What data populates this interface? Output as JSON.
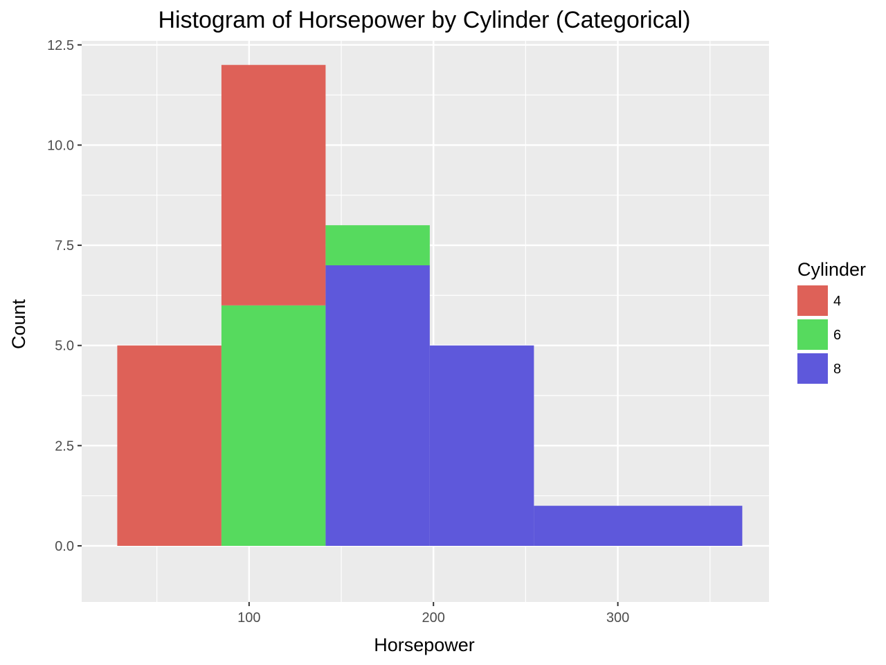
{
  "chart_data": {
    "type": "bar",
    "subtype": "stacked-histogram",
    "title": "Histogram of Horsepower by Cylinder (Categorical)",
    "xlabel": "Horsepower",
    "ylabel": "Count",
    "xlim": [
      9.2,
      382
    ],
    "ylim": [
      -1.4,
      12.6
    ],
    "x_ticks": [
      100,
      200,
      300
    ],
    "x_tick_labels": [
      "100",
      "200",
      "300"
    ],
    "y_ticks": [
      0,
      2.5,
      5,
      7.5,
      10,
      12.5
    ],
    "y_tick_labels": [
      "0.0",
      "2.5",
      "5.0",
      "7.5",
      "10.0",
      "12.5"
    ],
    "grid": true,
    "legend_position": "right",
    "legend_title": "Cylinder",
    "bins": [
      {
        "x0": 28.5,
        "x1": 85
      },
      {
        "x0": 85,
        "x1": 141.5
      },
      {
        "x0": 141.5,
        "x1": 198
      },
      {
        "x0": 198,
        "x1": 254.5
      },
      {
        "x0": 254.5,
        "x1": 367.5
      }
    ],
    "series": [
      {
        "name": "4",
        "color": "#de6158",
        "values": [
          5,
          6,
          0,
          0,
          0
        ]
      },
      {
        "name": "6",
        "color": "#56da5e",
        "values": [
          0,
          6,
          1,
          0,
          0
        ]
      },
      {
        "name": "8",
        "color": "#5e58db",
        "values": [
          0,
          0,
          7,
          5,
          1
        ]
      }
    ],
    "panel_color": "#ebebeb",
    "grid_color": "#ffffff"
  }
}
